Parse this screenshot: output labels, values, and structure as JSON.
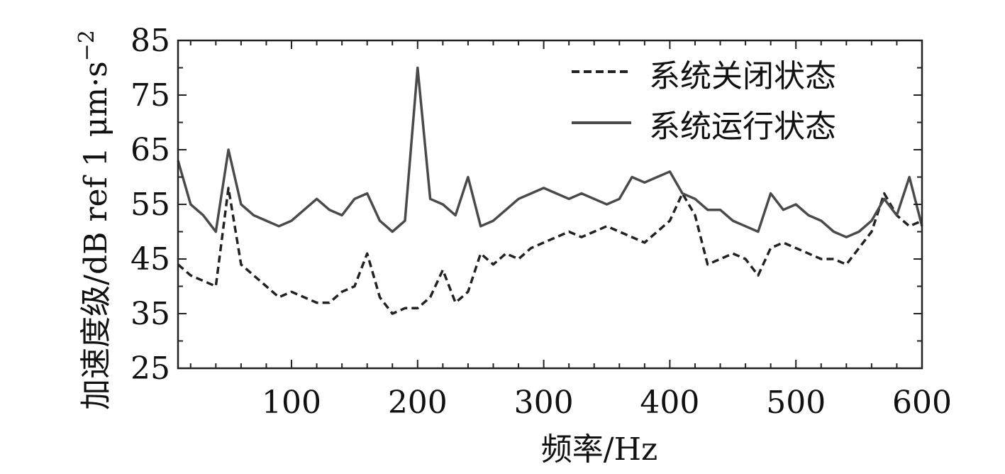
{
  "chart_data": {
    "type": "line",
    "title": "",
    "xlabel": "频率/Hz",
    "ylabel": "加速度级/dB ref 1 μm·s",
    "ylabel_sup": "−2",
    "xlim": [
      10,
      600
    ],
    "ylim": [
      25,
      85
    ],
    "xticks": [
      100,
      200,
      300,
      400,
      500,
      600
    ],
    "yticks": [
      25,
      35,
      45,
      55,
      65,
      75,
      85
    ],
    "grid": false,
    "legend_position": "top-right",
    "x": [
      10,
      20,
      30,
      40,
      50,
      60,
      70,
      80,
      90,
      100,
      110,
      120,
      130,
      140,
      150,
      160,
      170,
      180,
      190,
      200,
      210,
      220,
      230,
      240,
      250,
      260,
      270,
      280,
      290,
      300,
      310,
      320,
      330,
      340,
      350,
      360,
      370,
      380,
      390,
      400,
      410,
      420,
      430,
      440,
      450,
      460,
      470,
      480,
      490,
      500,
      510,
      520,
      530,
      540,
      550,
      560,
      570,
      580,
      590,
      600
    ],
    "series": [
      {
        "name": "系统关闭状态",
        "style": "dashed",
        "color": "#222222",
        "values": [
          44,
          42,
          41,
          40,
          58,
          44,
          42,
          40,
          38,
          39,
          38,
          37,
          37,
          39,
          40,
          46,
          38,
          35,
          36,
          36,
          38,
          43,
          37,
          39,
          46,
          44,
          46,
          45,
          47,
          48,
          49,
          50,
          49,
          50,
          51,
          50,
          49,
          48,
          50,
          52,
          57,
          53,
          44,
          45,
          46,
          45,
          42,
          47,
          48,
          47,
          46,
          45,
          45,
          44,
          47,
          50,
          57,
          53,
          51,
          52
        ]
      },
      {
        "name": "系统运行状态",
        "style": "solid",
        "color": "#4a4a4a",
        "values": [
          63,
          55,
          53,
          50,
          65,
          55,
          53,
          52,
          51,
          52,
          54,
          56,
          54,
          53,
          56,
          57,
          52,
          50,
          52,
          80,
          56,
          55,
          53,
          60,
          51,
          52,
          54,
          56,
          57,
          58,
          57,
          56,
          57,
          56,
          55,
          56,
          60,
          59,
          60,
          61,
          57,
          56,
          54,
          54,
          52,
          51,
          50,
          57,
          54,
          55,
          53,
          52,
          50,
          49,
          50,
          52,
          56,
          53,
          60,
          51
        ]
      }
    ]
  }
}
